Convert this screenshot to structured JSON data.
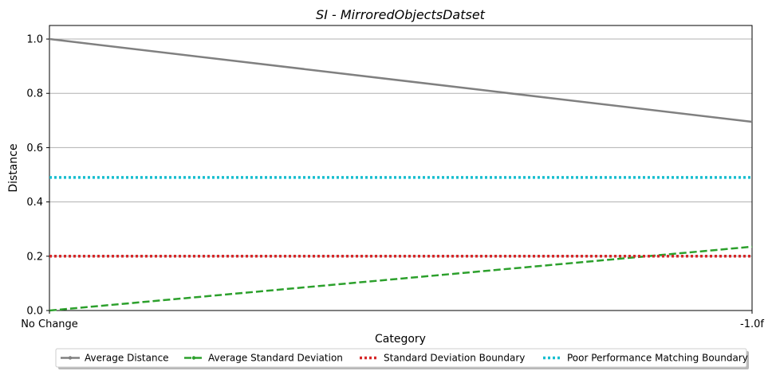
{
  "chart_data": {
    "type": "line",
    "title": "SI - MirroredObjectsDatset",
    "xlabel": "Category",
    "ylabel": "Distance",
    "categories": [
      "No Change",
      "-1.0f"
    ],
    "ylim": [
      0,
      1.05
    ],
    "yticks": [
      "0.0",
      "0.2",
      "0.4",
      "0.6",
      "0.8",
      "1.0"
    ],
    "grid": "horizontal",
    "legend_position": "bottom-center",
    "series": [
      {
        "name": "Average Distance",
        "values": [
          1.0,
          0.695
        ],
        "color": "#808080",
        "style": "solid"
      },
      {
        "name": "Average Standard Deviation",
        "values": [
          0.0,
          0.235
        ],
        "color": "#2ca02c",
        "style": "dashed"
      },
      {
        "name": "Standard Deviation Boundary",
        "values": [
          0.2,
          0.2
        ],
        "color": "#d62728",
        "style": "dotted"
      },
      {
        "name": "Poor Performance Matching Boundary",
        "values": [
          0.49,
          0.49
        ],
        "color": "#17becf",
        "style": "dotted"
      }
    ]
  }
}
